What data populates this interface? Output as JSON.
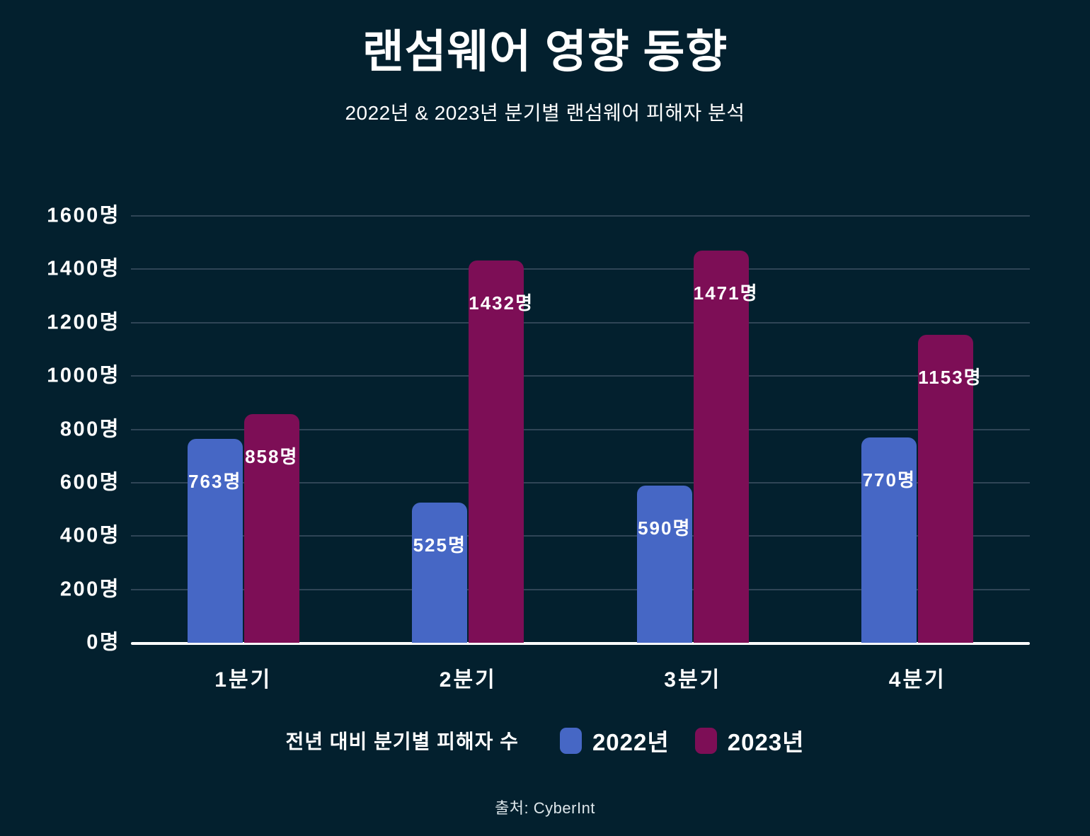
{
  "page": {
    "title": "랜섬웨어 영향 동향",
    "subtitle": "2022년 & 2023년 분기별 랜섬웨어 피해자 분석",
    "source": "출처: CyberInt"
  },
  "colors": {
    "background": "#03202e",
    "gridline": "#2f4556",
    "axis_line": "#ffffff",
    "text": "#ffffff",
    "source_text": "#dde6ea",
    "series_2022": "#4667c5",
    "series_2023": "#7d0e56"
  },
  "chart_data": {
    "type": "bar",
    "categories": [
      "1분기",
      "2분기",
      "3분기",
      "4분기"
    ],
    "series": [
      {
        "name": "2022년",
        "color": "#4667c5",
        "values": [
          763,
          525,
          590,
          770
        ]
      },
      {
        "name": "2023년",
        "color": "#7d0e56",
        "values": [
          858,
          1432,
          1471,
          1153
        ]
      }
    ],
    "value_suffix": "명",
    "ylim": [
      0,
      1600
    ],
    "ytick_step": 200,
    "ytick_suffix": "명",
    "grid": true,
    "legend_caption": "전년 대비 분기별 피해자 수",
    "legend_position": "bottom"
  }
}
